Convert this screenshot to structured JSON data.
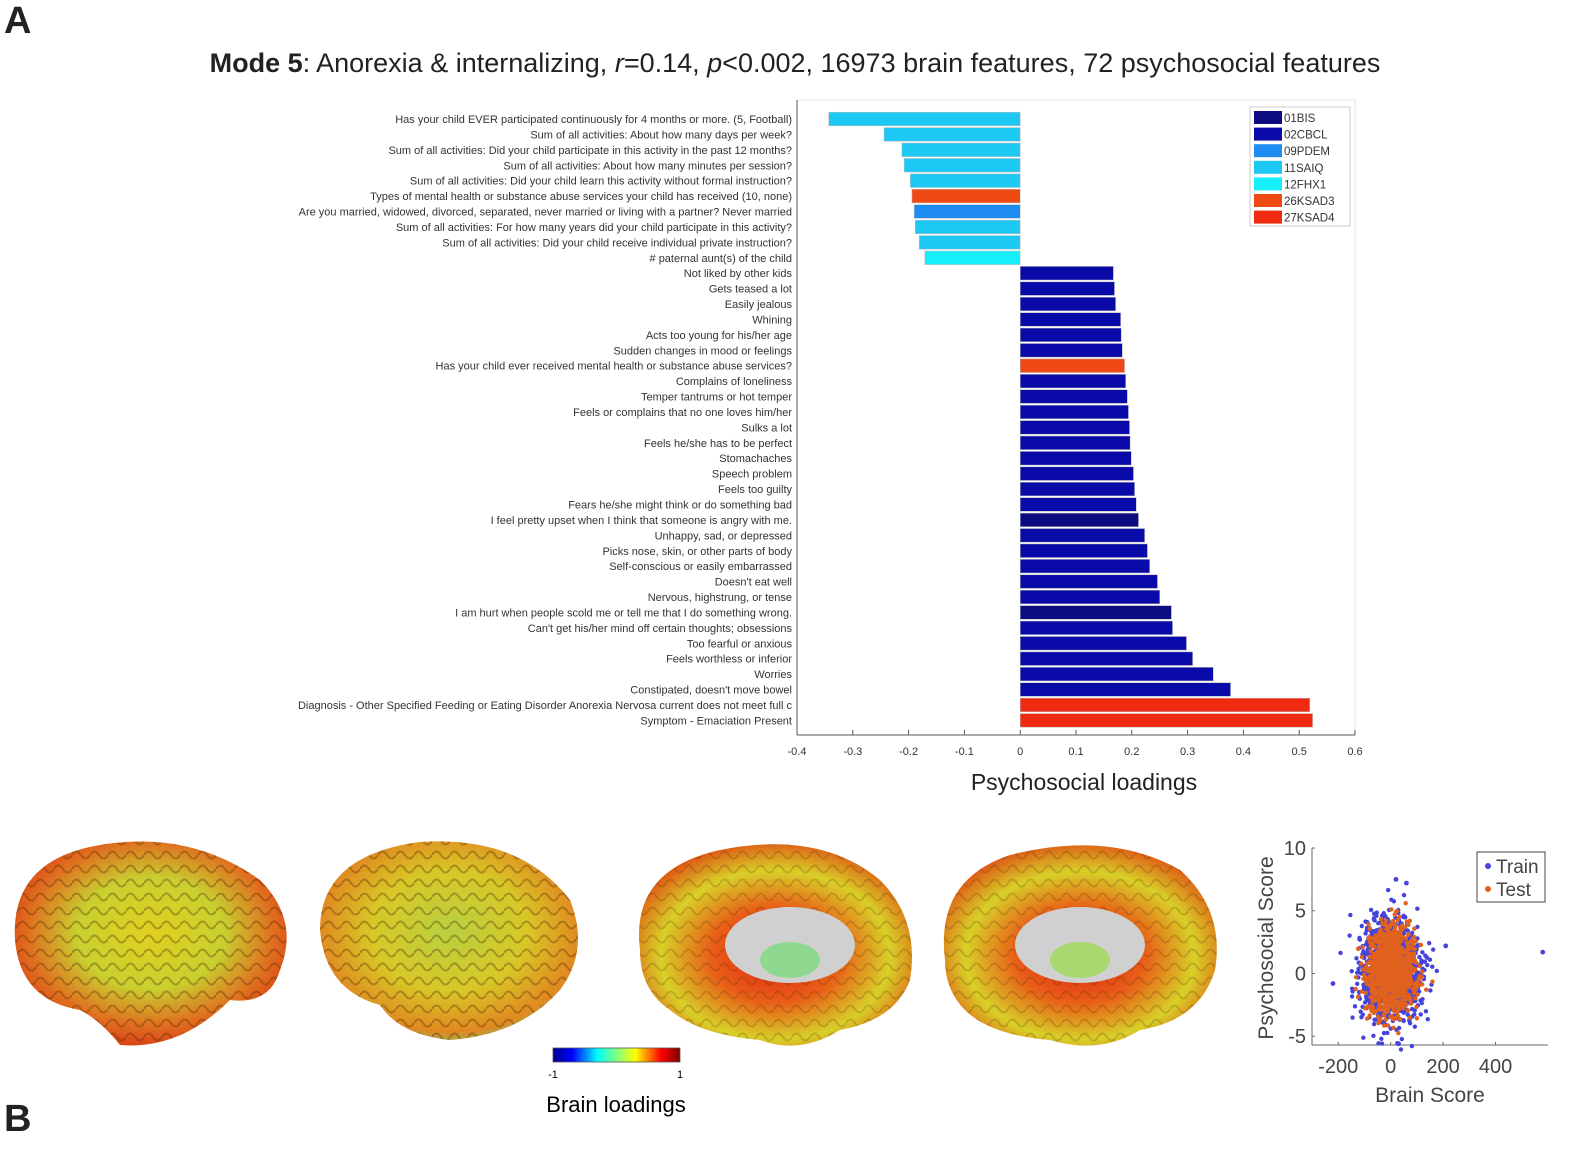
{
  "panel_labels": {
    "a": "A",
    "b": "B"
  },
  "title": {
    "mode": "Mode 5",
    "sep": ": Anorexia & internalizing, ",
    "r_sym": "r",
    "r_val": "=0.14, ",
    "p_sym": "p",
    "p_val": "<0.002, 16973 brain features, 72 psychosocial features"
  },
  "colors": {
    "01BIS": "#0c0c80",
    "02CBCL": "#0a0aa8",
    "09PDEM": "#1e8cf0",
    "11SAIQ": "#1ec8f5",
    "12FHX1": "#16eefa",
    "26KSAD3": "#f04a14",
    "27KSAD4": "#f02a10"
  },
  "chart_data": [
    {
      "type": "bar",
      "orientation": "horizontal",
      "xlabel": "Psychosocial loadings",
      "xlim": [
        -0.4,
        0.6
      ],
      "xticks": [
        "-0.4",
        "-0.3",
        "-0.2",
        "-0.1",
        "0",
        "0.1",
        "0.2",
        "0.3",
        "0.4",
        "0.5",
        "0.6"
      ],
      "legend": {
        "placement": "top-right",
        "entries": [
          "01BIS",
          "02CBCL",
          "09PDEM",
          "11SAIQ",
          "12FHX1",
          "26KSAD3",
          "27KSAD4"
        ]
      },
      "bars": [
        {
          "label": "Has your child EVER participated continuously for 4 months or more. (5, Football)",
          "value": -0.343,
          "group": "11SAIQ"
        },
        {
          "label": "Sum of all activities:  About how many days per week?",
          "value": -0.244,
          "group": "11SAIQ"
        },
        {
          "label": "Sum of all activities:  Did your child participate in this activity in the past 12 months?",
          "value": -0.212,
          "group": "11SAIQ"
        },
        {
          "label": "Sum of all activities:  About how many minutes per session?",
          "value": -0.208,
          "group": "11SAIQ"
        },
        {
          "label": "Sum of all activities:  Did your child learn this activity without formal instruction?",
          "value": -0.197,
          "group": "11SAIQ"
        },
        {
          "label": "Types of mental health or substance abuse services your child has received (10, none)",
          "value": -0.194,
          "group": "26KSAD3"
        },
        {
          "label": "Are you married, widowed, divorced, separated, never married or living with a partner? Never married",
          "value": -0.19,
          "group": "09PDEM"
        },
        {
          "label": "Sum of all activities:  For how many years did your child participate in this activity?",
          "value": -0.188,
          "group": "11SAIQ"
        },
        {
          "label": "Sum of all activities:  Did your child receive individual private instruction?",
          "value": -0.181,
          "group": "11SAIQ"
        },
        {
          "label": "# paternal aunt(s) of the child",
          "value": -0.171,
          "group": "12FHX1"
        },
        {
          "label": "Not liked by other kids",
          "value": 0.167,
          "group": "02CBCL"
        },
        {
          "label": "Gets teased a lot",
          "value": 0.169,
          "group": "02CBCL"
        },
        {
          "label": "Easily jealous",
          "value": 0.171,
          "group": "02CBCL"
        },
        {
          "label": "Whining",
          "value": 0.18,
          "group": "02CBCL"
        },
        {
          "label": "Acts too young for his/her age",
          "value": 0.181,
          "group": "02CBCL"
        },
        {
          "label": "Sudden changes in mood or feelings",
          "value": 0.183,
          "group": "02CBCL"
        },
        {
          "label": "Has your child ever received mental health or substance abuse services?",
          "value": 0.187,
          "group": "26KSAD3"
        },
        {
          "label": "Complains of loneliness",
          "value": 0.189,
          "group": "02CBCL"
        },
        {
          "label": "Temper tantrums or hot temper",
          "value": 0.192,
          "group": "02CBCL"
        },
        {
          "label": "Feels or complains that no one loves him/her",
          "value": 0.194,
          "group": "02CBCL"
        },
        {
          "label": "Sulks a lot",
          "value": 0.196,
          "group": "02CBCL"
        },
        {
          "label": "Feels he/she has to be perfect",
          "value": 0.197,
          "group": "02CBCL"
        },
        {
          "label": "Stomachaches",
          "value": 0.199,
          "group": "02CBCL"
        },
        {
          "label": "Speech problem",
          "value": 0.203,
          "group": "02CBCL"
        },
        {
          "label": "Feels too guilty",
          "value": 0.205,
          "group": "02CBCL"
        },
        {
          "label": "Fears he/she might think or do something bad",
          "value": 0.208,
          "group": "02CBCL"
        },
        {
          "label": "I feel pretty upset when I think that someone is angry with me.",
          "value": 0.212,
          "group": "01BIS"
        },
        {
          "label": "Unhappy, sad, or depressed",
          "value": 0.223,
          "group": "02CBCL"
        },
        {
          "label": "Picks nose, skin, or other parts of body",
          "value": 0.228,
          "group": "02CBCL"
        },
        {
          "label": "Self-conscious or easily embarrassed",
          "value": 0.232,
          "group": "02CBCL"
        },
        {
          "label": "Doesn't eat well",
          "value": 0.246,
          "group": "02CBCL"
        },
        {
          "label": "Nervous, highstrung, or tense",
          "value": 0.25,
          "group": "02CBCL"
        },
        {
          "label": "I am hurt when people scold me or tell me that I do something wrong.",
          "value": 0.271,
          "group": "01BIS"
        },
        {
          "label": "Can't get his/her mind off certain thoughts; obsessions",
          "value": 0.273,
          "group": "02CBCL"
        },
        {
          "label": "Too fearful or anxious",
          "value": 0.298,
          "group": "02CBCL"
        },
        {
          "label": "Feels worthless or inferior",
          "value": 0.309,
          "group": "02CBCL"
        },
        {
          "label": "Worries",
          "value": 0.346,
          "group": "02CBCL"
        },
        {
          "label": "Constipated, doesn't move bowel",
          "value": 0.377,
          "group": "02CBCL"
        },
        {
          "label": "Diagnosis - Other Specified Feeding or Eating Disorder Anorexia Nervosa current does not meet full c",
          "value": 0.519,
          "group": "27KSAD4"
        },
        {
          "label": "Symptom - Emaciation Present",
          "value": 0.524,
          "group": "27KSAD4"
        }
      ]
    },
    {
      "type": "scatter",
      "xlabel": "Brain Score",
      "ylabel": "Psychosocial Score",
      "xlim": [
        -300,
        600
      ],
      "ylim": [
        -5.7,
        10
      ],
      "xticks": [
        "-200",
        "0",
        "200",
        "400"
      ],
      "yticks": [
        "10",
        "5",
        "0",
        "-5"
      ],
      "legend": {
        "placement": "top-right",
        "entries": [
          "Train",
          "Test"
        ]
      },
      "series": [
        {
          "name": "Train",
          "color": "#4444dd",
          "n": 1400,
          "mean_x": 0,
          "sd_x": 55,
          "mean_y": 0.3,
          "sd_y": 1.9,
          "outliers": [
            [
              580,
              1.7
            ],
            [
              210,
              2.2
            ],
            [
              -220,
              -0.8
            ],
            [
              20,
              7.5
            ],
            [
              60,
              7.2
            ],
            [
              30,
              -5.6
            ]
          ]
        },
        {
          "name": "Test",
          "color": "#e0621e",
          "n": 1100,
          "mean_x": 0,
          "sd_x": 45,
          "mean_y": 0.3,
          "sd_y": 1.6,
          "outliers": []
        }
      ]
    },
    {
      "type": "colorbar",
      "label": "Brain loadings",
      "range": [
        -1,
        1
      ],
      "ticks": [
        "-1",
        "1"
      ]
    }
  ]
}
